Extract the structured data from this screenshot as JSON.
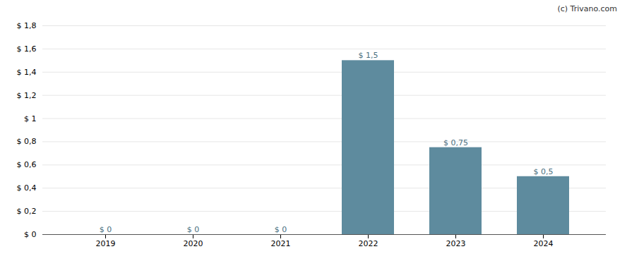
{
  "chart_data": {
    "type": "bar",
    "categories": [
      "2019",
      "2020",
      "2021",
      "2022",
      "2023",
      "2024"
    ],
    "values": [
      0,
      0,
      0,
      1.5,
      0.75,
      0.5
    ],
    "value_labels": [
      "$ 0",
      "$ 0",
      "$ 0",
      "$ 1,5",
      "$ 0,75",
      "$ 0,5"
    ],
    "data_labels": true,
    "color": "#5e8b9e",
    "ylim": [
      0,
      1.8
    ],
    "yticks": [
      {
        "value": 0,
        "label": "$ 0"
      },
      {
        "value": 0.2,
        "label": "$ 0,2"
      },
      {
        "value": 0.4,
        "label": "$ 0,4"
      },
      {
        "value": 0.6,
        "label": "$ 0,6"
      },
      {
        "value": 0.8,
        "label": "$ 0,8"
      },
      {
        "value": 1.0,
        "label": "$ 1"
      },
      {
        "value": 1.2,
        "label": "$ 1,2"
      },
      {
        "value": 1.4,
        "label": "$ 1,4"
      },
      {
        "value": 1.6,
        "label": "$ 1,6"
      },
      {
        "value": 1.8,
        "label": "$ 1,8"
      }
    ],
    "grid": true,
    "annotations": [
      "(c) Trivano.com"
    ]
  }
}
